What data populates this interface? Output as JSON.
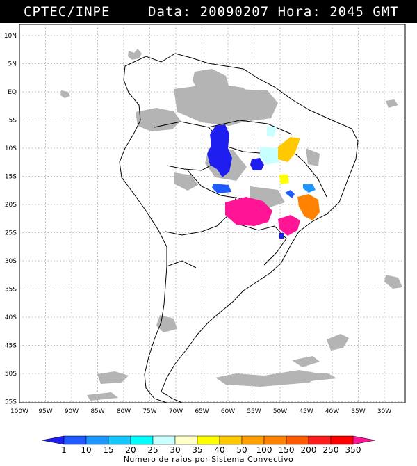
{
  "header": {
    "source": "CPTEC/INPE",
    "datetime": "Data: 20090207 Hora: 2045 GMT"
  },
  "map": {
    "lat_labels": [
      "10N",
      "5N",
      "EQ",
      "5S",
      "10S",
      "15S",
      "20S",
      "25S",
      "30S",
      "35S",
      "40S",
      "45S",
      "50S",
      "55S"
    ],
    "lon_labels": [
      "100W",
      "95W",
      "90W",
      "85W",
      "80W",
      "75W",
      "70W",
      "65W",
      "60W",
      "55W",
      "50W",
      "45W",
      "40W",
      "35W",
      "30W"
    ],
    "colors": {
      "background": "#ffffff",
      "clouds": "#b4b4b4",
      "borders": "#000000",
      "grid": "#9a9a9a"
    }
  },
  "colorbar": {
    "tick_labels": [
      "1",
      "10",
      "15",
      "20",
      "25",
      "30",
      "35",
      "40",
      "50",
      "100",
      "150",
      "200",
      "250",
      "350"
    ],
    "colors": [
      "#1e1ef0",
      "#1e5aff",
      "#1e96ff",
      "#14c8ff",
      "#00ffff",
      "#c8ffff",
      "#ffffc8",
      "#ffff00",
      "#ffc800",
      "#ffa000",
      "#ff8200",
      "#ff5a00",
      "#ff1e1e",
      "#ff0000",
      "#ff1496"
    ],
    "title": "Numero de raios por Sistema Convectivo"
  }
}
